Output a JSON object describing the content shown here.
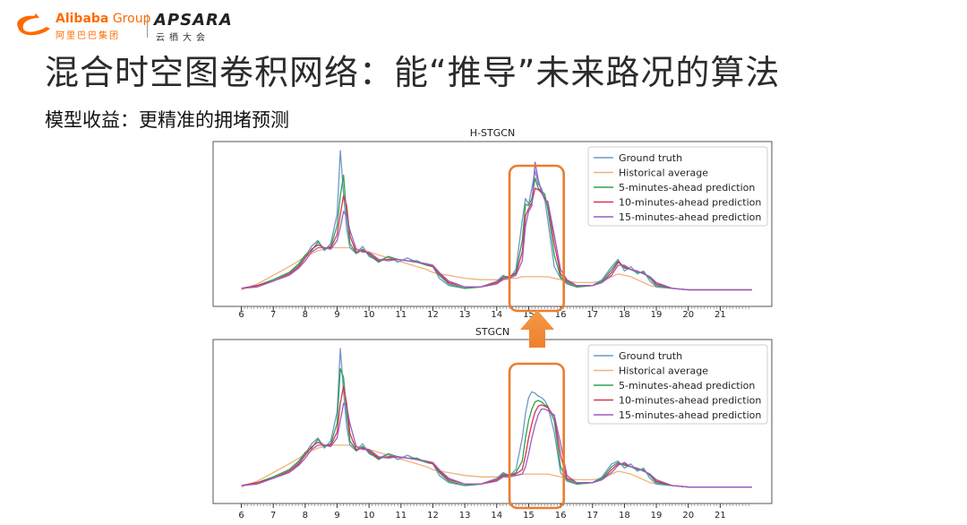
{
  "header": {
    "alibaba_wordmark": "Alibaba",
    "alibaba_group": " Group",
    "alibaba_cn": "阿里巴巴集团",
    "apsara_wordmark": "APSARA",
    "apsara_cn": "云栖大会"
  },
  "slide": {
    "title": "混合时空图卷积网络：能“推导”未来路况的算法",
    "subtitle": "模型收益：更精准的拥堵预测"
  },
  "colors": {
    "ground_truth": "#6f97c9",
    "historical": "#f2b27a",
    "pred5": "#2ea24f",
    "pred10": "#d9334c",
    "pred15": "#9a5cc4",
    "highlight": "#ea7d2d",
    "brand": "#ff6a00"
  },
  "chart_data": [
    {
      "type": "line",
      "title": "H-STGCN",
      "x_ticks": [
        6,
        7,
        8,
        9,
        10,
        11,
        12,
        13,
        14,
        15,
        16,
        17,
        18,
        19,
        20,
        21
      ],
      "xlim": [
        5.9,
        22.0
      ],
      "ylim": [
        0,
        1.0
      ],
      "legend": [
        "Ground truth",
        "Historical average",
        "5-minutes-ahead prediction",
        "10-minutes-ahead prediction",
        "15-minutes-ahead prediction"
      ],
      "legend_placement": "top-right",
      "highlight_range": [
        14.4,
        16.1
      ],
      "x": [
        6.0,
        6.5,
        7.0,
        7.5,
        7.8,
        8.0,
        8.2,
        8.4,
        8.6,
        8.8,
        9.0,
        9.1,
        9.2,
        9.3,
        9.4,
        9.6,
        9.8,
        10.0,
        10.3,
        10.6,
        10.9,
        11.2,
        11.5,
        11.8,
        12.0,
        12.2,
        12.5,
        13.0,
        13.5,
        14.0,
        14.2,
        14.4,
        14.6,
        14.8,
        14.9,
        15.0,
        15.1,
        15.2,
        15.3,
        15.4,
        15.5,
        15.6,
        15.8,
        16.0,
        16.2,
        16.5,
        17.0,
        17.3,
        17.6,
        17.8,
        18.0,
        18.2,
        18.4,
        18.6,
        18.8,
        19.0,
        19.5,
        20.0,
        21.0,
        22.0
      ],
      "series": [
        {
          "name": "Ground truth",
          "values": [
            0.05,
            0.07,
            0.11,
            0.16,
            0.21,
            0.27,
            0.34,
            0.38,
            0.31,
            0.36,
            0.56,
            1.0,
            0.7,
            0.46,
            0.33,
            0.29,
            0.34,
            0.27,
            0.24,
            0.27,
            0.23,
            0.26,
            0.23,
            0.21,
            0.2,
            0.12,
            0.07,
            0.05,
            0.06,
            0.1,
            0.14,
            0.12,
            0.18,
            0.52,
            0.67,
            0.63,
            0.74,
            0.86,
            0.77,
            0.74,
            0.67,
            0.52,
            0.2,
            0.12,
            0.08,
            0.06,
            0.07,
            0.11,
            0.2,
            0.25,
            0.17,
            0.2,
            0.15,
            0.17,
            0.1,
            0.06,
            0.05,
            0.04,
            0.04,
            0.04
          ]
        },
        {
          "name": "Historical average",
          "values": [
            0.04,
            0.08,
            0.14,
            0.2,
            0.24,
            0.27,
            0.29,
            0.31,
            0.32,
            0.33,
            0.33,
            0.33,
            0.33,
            0.33,
            0.33,
            0.32,
            0.32,
            0.3,
            0.28,
            0.26,
            0.24,
            0.22,
            0.2,
            0.18,
            0.16,
            0.15,
            0.14,
            0.12,
            0.11,
            0.11,
            0.11,
            0.12,
            0.12,
            0.13,
            0.13,
            0.13,
            0.13,
            0.13,
            0.13,
            0.13,
            0.13,
            0.13,
            0.12,
            0.11,
            0.1,
            0.09,
            0.09,
            0.1,
            0.13,
            0.15,
            0.14,
            0.13,
            0.11,
            0.09,
            0.07,
            0.06,
            0.05,
            0.04,
            0.04,
            0.04
          ]
        },
        {
          "name": "5-minutes-ahead prediction",
          "values": [
            0.05,
            0.07,
            0.11,
            0.16,
            0.22,
            0.28,
            0.31,
            0.37,
            0.32,
            0.34,
            0.48,
            0.69,
            0.83,
            0.55,
            0.36,
            0.29,
            0.32,
            0.28,
            0.23,
            0.27,
            0.25,
            0.24,
            0.24,
            0.21,
            0.2,
            0.14,
            0.08,
            0.05,
            0.06,
            0.09,
            0.13,
            0.13,
            0.16,
            0.38,
            0.63,
            0.62,
            0.67,
            0.81,
            0.74,
            0.72,
            0.7,
            0.6,
            0.28,
            0.13,
            0.09,
            0.06,
            0.07,
            0.1,
            0.18,
            0.24,
            0.19,
            0.18,
            0.16,
            0.16,
            0.12,
            0.07,
            0.05,
            0.04,
            0.04,
            0.04
          ]
        },
        {
          "name": "10-minutes-ahead prediction",
          "values": [
            0.05,
            0.07,
            0.1,
            0.15,
            0.2,
            0.26,
            0.32,
            0.35,
            0.33,
            0.33,
            0.42,
            0.56,
            0.69,
            0.62,
            0.41,
            0.3,
            0.31,
            0.29,
            0.24,
            0.25,
            0.25,
            0.24,
            0.23,
            0.22,
            0.2,
            0.15,
            0.09,
            0.06,
            0.06,
            0.09,
            0.12,
            0.13,
            0.15,
            0.3,
            0.55,
            0.6,
            0.64,
            0.74,
            0.73,
            0.71,
            0.67,
            0.64,
            0.36,
            0.15,
            0.1,
            0.07,
            0.07,
            0.09,
            0.16,
            0.23,
            0.2,
            0.18,
            0.17,
            0.15,
            0.13,
            0.08,
            0.05,
            0.04,
            0.04,
            0.04
          ]
        },
        {
          "name": "15-minutes-ahead prediction",
          "values": [
            0.05,
            0.06,
            0.1,
            0.14,
            0.19,
            0.24,
            0.3,
            0.33,
            0.33,
            0.32,
            0.38,
            0.47,
            0.58,
            0.55,
            0.45,
            0.32,
            0.3,
            0.3,
            0.25,
            0.24,
            0.25,
            0.24,
            0.23,
            0.22,
            0.21,
            0.16,
            0.1,
            0.06,
            0.06,
            0.08,
            0.11,
            0.12,
            0.14,
            0.24,
            0.48,
            0.58,
            0.62,
            0.92,
            0.8,
            0.72,
            0.66,
            0.65,
            0.42,
            0.18,
            0.11,
            0.07,
            0.07,
            0.09,
            0.14,
            0.21,
            0.21,
            0.18,
            0.17,
            0.15,
            0.13,
            0.09,
            0.05,
            0.04,
            0.04,
            0.04
          ]
        }
      ]
    },
    {
      "type": "line",
      "title": "STGCN",
      "x_ticks": [
        6,
        7,
        8,
        9,
        10,
        11,
        12,
        13,
        14,
        15,
        16,
        17,
        18,
        19,
        20,
        21
      ],
      "xlim": [
        5.9,
        22.0
      ],
      "ylim": [
        0,
        1.0
      ],
      "legend": [
        "Ground truth",
        "Historical average",
        "5-minutes-ahead prediction",
        "10-minutes-ahead prediction",
        "15-minutes-ahead prediction"
      ],
      "legend_placement": "top-right",
      "highlight_range": [
        14.4,
        16.1
      ],
      "x": [
        6.0,
        6.5,
        7.0,
        7.5,
        7.8,
        8.0,
        8.2,
        8.4,
        8.6,
        8.8,
        9.0,
        9.1,
        9.2,
        9.3,
        9.4,
        9.6,
        9.8,
        10.0,
        10.3,
        10.6,
        10.9,
        11.2,
        11.5,
        11.8,
        12.0,
        12.2,
        12.5,
        13.0,
        13.5,
        14.0,
        14.2,
        14.4,
        14.6,
        14.8,
        14.9,
        15.0,
        15.1,
        15.2,
        15.3,
        15.4,
        15.5,
        15.6,
        15.8,
        16.0,
        16.2,
        16.5,
        17.0,
        17.3,
        17.6,
        17.8,
        18.0,
        18.2,
        18.4,
        18.6,
        18.8,
        19.0,
        19.5,
        20.0,
        21.0,
        22.0
      ],
      "series": [
        {
          "name": "Ground truth",
          "values": [
            0.05,
            0.07,
            0.11,
            0.16,
            0.21,
            0.27,
            0.34,
            0.38,
            0.31,
            0.36,
            0.56,
            1.0,
            0.7,
            0.46,
            0.33,
            0.29,
            0.34,
            0.27,
            0.24,
            0.27,
            0.23,
            0.26,
            0.23,
            0.21,
            0.2,
            0.12,
            0.07,
            0.05,
            0.06,
            0.1,
            0.14,
            0.12,
            0.16,
            0.38,
            0.55,
            0.66,
            0.7,
            0.69,
            0.67,
            0.66,
            0.64,
            0.6,
            0.42,
            0.14,
            0.08,
            0.06,
            0.07,
            0.11,
            0.2,
            0.22,
            0.17,
            0.2,
            0.15,
            0.17,
            0.1,
            0.06,
            0.05,
            0.04,
            0.04,
            0.04
          ]
        },
        {
          "name": "Historical average",
          "values": [
            0.04,
            0.08,
            0.14,
            0.2,
            0.24,
            0.27,
            0.29,
            0.31,
            0.32,
            0.33,
            0.33,
            0.33,
            0.33,
            0.33,
            0.33,
            0.32,
            0.32,
            0.3,
            0.28,
            0.26,
            0.24,
            0.22,
            0.2,
            0.18,
            0.16,
            0.15,
            0.14,
            0.12,
            0.11,
            0.11,
            0.11,
            0.12,
            0.12,
            0.13,
            0.13,
            0.13,
            0.13,
            0.13,
            0.13,
            0.13,
            0.13,
            0.13,
            0.12,
            0.11,
            0.1,
            0.09,
            0.09,
            0.1,
            0.13,
            0.15,
            0.14,
            0.13,
            0.11,
            0.09,
            0.07,
            0.06,
            0.05,
            0.04,
            0.04,
            0.04
          ]
        },
        {
          "name": "5-minutes-ahead prediction",
          "values": [
            0.05,
            0.07,
            0.11,
            0.16,
            0.22,
            0.28,
            0.31,
            0.37,
            0.32,
            0.34,
            0.48,
            0.86,
            0.8,
            0.55,
            0.36,
            0.29,
            0.32,
            0.28,
            0.23,
            0.27,
            0.25,
            0.24,
            0.24,
            0.21,
            0.2,
            0.14,
            0.08,
            0.05,
            0.06,
            0.09,
            0.13,
            0.12,
            0.14,
            0.22,
            0.38,
            0.5,
            0.58,
            0.63,
            0.64,
            0.63,
            0.61,
            0.6,
            0.5,
            0.18,
            0.09,
            0.06,
            0.07,
            0.1,
            0.18,
            0.21,
            0.19,
            0.18,
            0.16,
            0.16,
            0.12,
            0.07,
            0.05,
            0.04,
            0.04,
            0.04
          ]
        },
        {
          "name": "10-minutes-ahead prediction",
          "values": [
            0.05,
            0.07,
            0.1,
            0.15,
            0.2,
            0.26,
            0.32,
            0.35,
            0.33,
            0.33,
            0.42,
            0.62,
            0.74,
            0.62,
            0.41,
            0.3,
            0.31,
            0.29,
            0.24,
            0.25,
            0.25,
            0.24,
            0.23,
            0.22,
            0.2,
            0.15,
            0.09,
            0.06,
            0.06,
            0.09,
            0.12,
            0.12,
            0.13,
            0.16,
            0.26,
            0.38,
            0.48,
            0.56,
            0.6,
            0.61,
            0.6,
            0.59,
            0.53,
            0.26,
            0.1,
            0.07,
            0.07,
            0.09,
            0.16,
            0.2,
            0.2,
            0.18,
            0.17,
            0.15,
            0.13,
            0.08,
            0.05,
            0.04,
            0.04,
            0.04
          ]
        },
        {
          "name": "15-minutes-ahead prediction",
          "values": [
            0.05,
            0.06,
            0.1,
            0.14,
            0.19,
            0.24,
            0.3,
            0.33,
            0.33,
            0.32,
            0.38,
            0.5,
            0.62,
            0.6,
            0.48,
            0.32,
            0.3,
            0.3,
            0.25,
            0.24,
            0.25,
            0.24,
            0.23,
            0.22,
            0.21,
            0.16,
            0.1,
            0.06,
            0.06,
            0.08,
            0.11,
            0.11,
            0.12,
            0.13,
            0.18,
            0.27,
            0.38,
            0.47,
            0.54,
            0.58,
            0.58,
            0.57,
            0.54,
            0.34,
            0.12,
            0.07,
            0.07,
            0.09,
            0.14,
            0.19,
            0.21,
            0.18,
            0.17,
            0.15,
            0.13,
            0.09,
            0.05,
            0.04,
            0.04,
            0.04
          ]
        }
      ]
    }
  ]
}
